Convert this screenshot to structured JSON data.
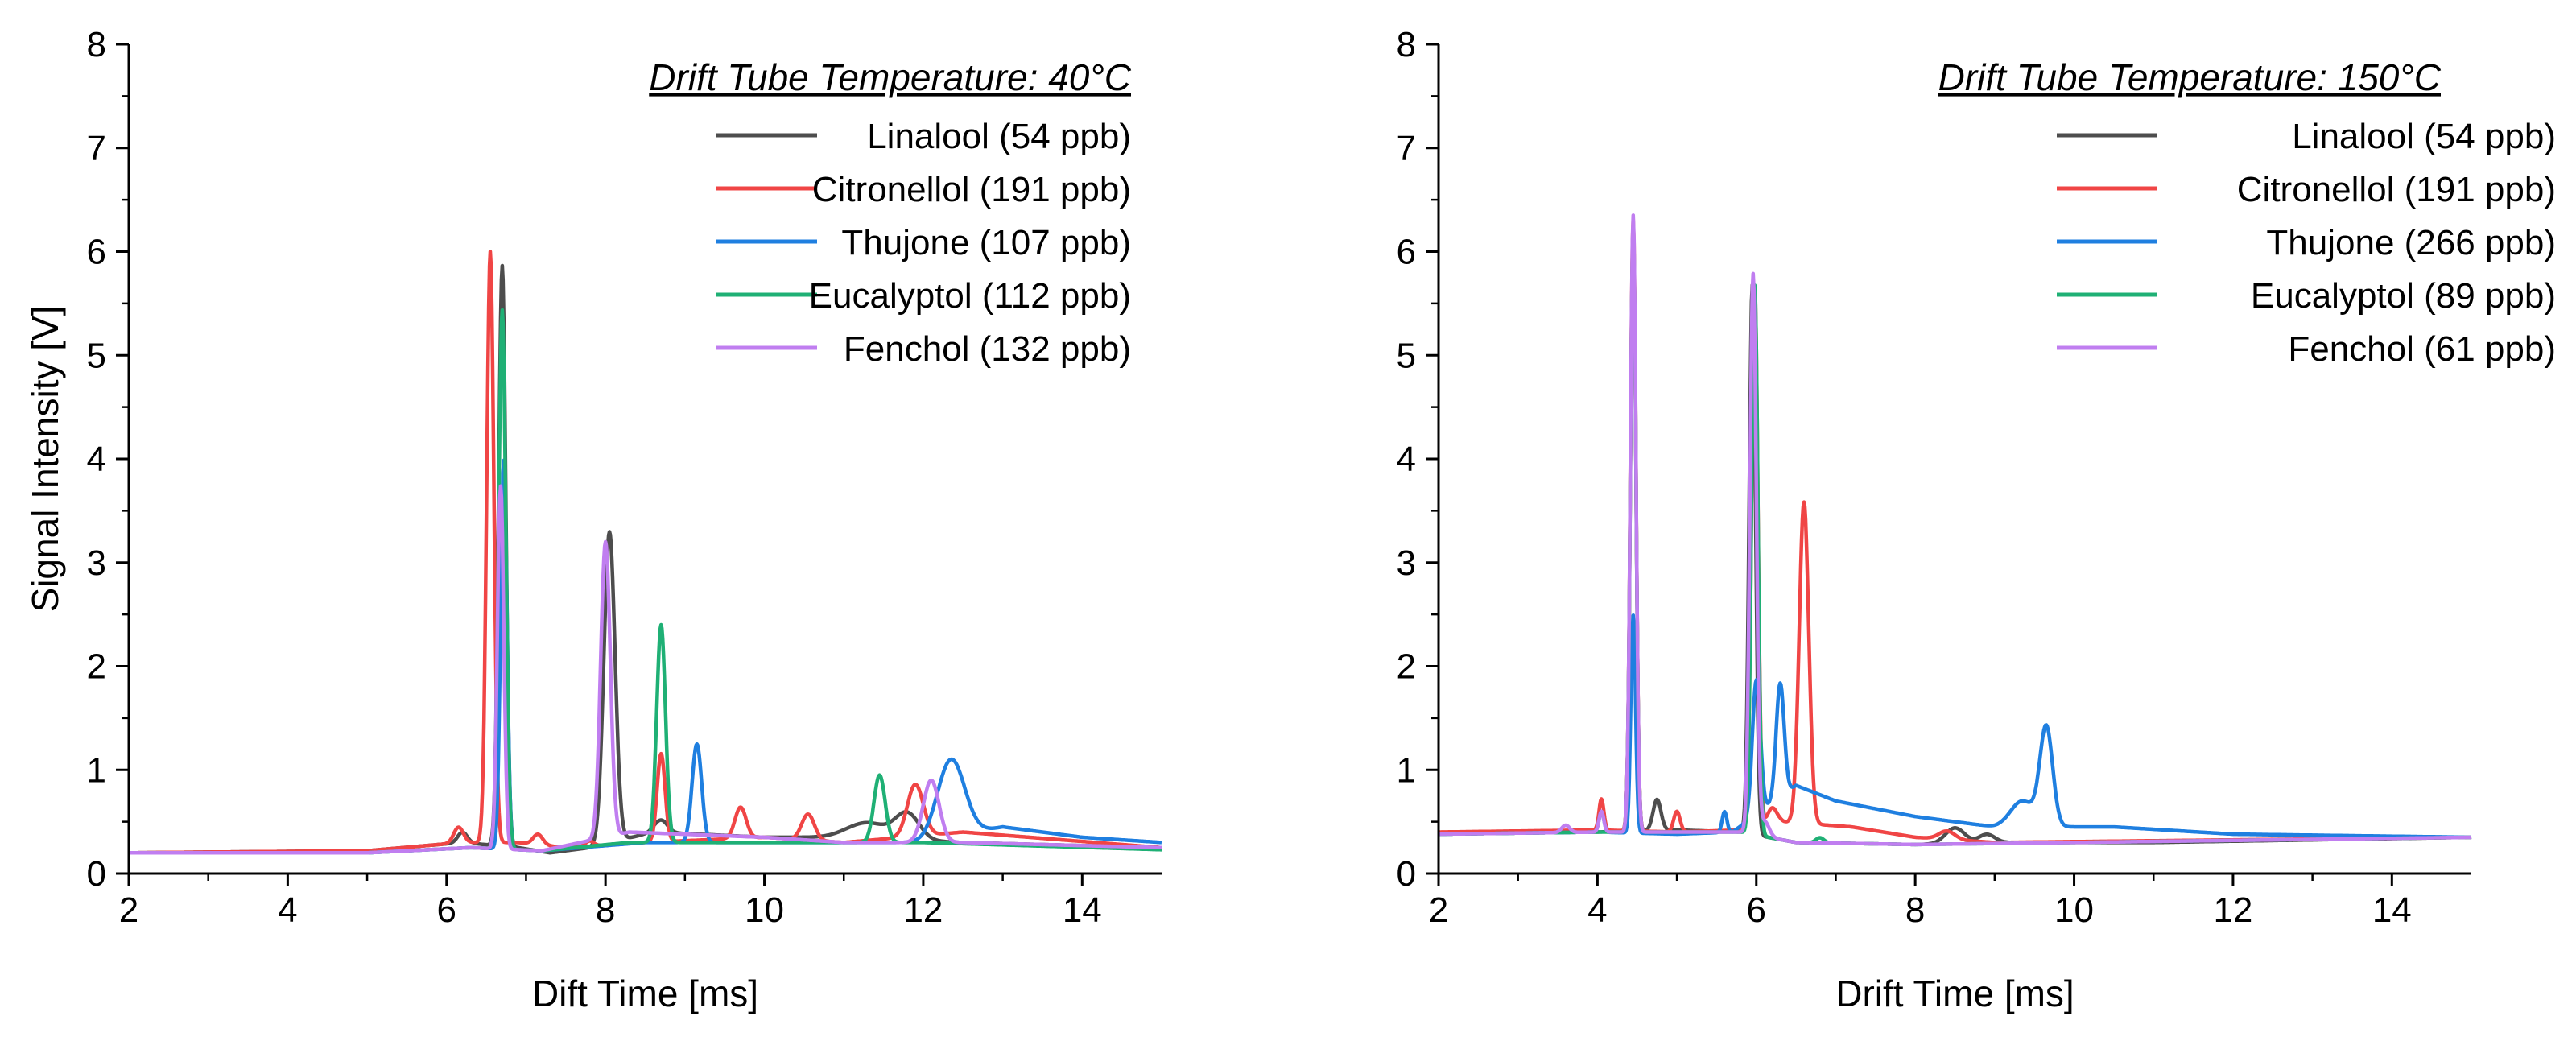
{
  "chart_data": [
    {
      "type": "line",
      "id": "left",
      "legend_title": "Drift Tube Temperature: 40°C",
      "xlabel": "Dift Time [ms]",
      "ylabel": "Signal Intensity [V]",
      "xlim": [
        2,
        15
      ],
      "ylim": [
        0,
        8
      ],
      "xticks": [
        2,
        4,
        6,
        8,
        10,
        12,
        14
      ],
      "yticks": [
        0,
        1,
        2,
        3,
        4,
        5,
        6,
        7,
        8
      ],
      "legend_position": "top-right",
      "series": [
        {
          "name": "Linalool (54 ppb)",
          "color": "#4d4d4d",
          "baseline": [
            [
              2,
              0.2
            ],
            [
              5,
              0.22
            ],
            [
              6.2,
              0.3
            ],
            [
              6.9,
              0.25
            ],
            [
              7.3,
              0.2
            ],
            [
              7.8,
              0.25
            ],
            [
              8.6,
              0.4
            ],
            [
              10,
              0.35
            ],
            [
              11,
              0.35
            ],
            [
              12.5,
              0.3
            ],
            [
              15,
              0.25
            ]
          ],
          "peaks": [
            [
              6.2,
              0.1,
              0.06
            ],
            [
              6.7,
              5.6,
              0.045
            ],
            [
              8.05,
              3.0,
              0.07
            ],
            [
              8.7,
              0.12,
              0.08
            ],
            [
              11.3,
              0.15,
              0.25
            ],
            [
              11.8,
              0.25,
              0.15
            ]
          ]
        },
        {
          "name": "Citronellol (191 ppb)",
          "color": "#f04545",
          "baseline": [
            [
              2,
              0.2
            ],
            [
              5,
              0.22
            ],
            [
              6.2,
              0.3
            ],
            [
              6.9,
              0.3
            ],
            [
              7.5,
              0.25
            ],
            [
              8.5,
              0.3
            ],
            [
              10,
              0.35
            ],
            [
              11,
              0.3
            ],
            [
              12.5,
              0.4
            ],
            [
              15,
              0.25
            ]
          ],
          "peaks": [
            [
              6.15,
              0.15,
              0.06
            ],
            [
              6.55,
              5.7,
              0.045
            ],
            [
              7.15,
              0.1,
              0.06
            ],
            [
              7.8,
              0.05,
              0.05
            ],
            [
              8.7,
              0.85,
              0.05
            ],
            [
              9.7,
              0.3,
              0.07
            ],
            [
              10.55,
              0.25,
              0.08
            ],
            [
              11.9,
              0.5,
              0.1
            ]
          ]
        },
        {
          "name": "Thujone (107 ppb)",
          "color": "#1f7fe0",
          "baseline": [
            [
              2,
              0.2
            ],
            [
              5,
              0.2
            ],
            [
              6.3,
              0.25
            ],
            [
              7.2,
              0.22
            ],
            [
              8.5,
              0.3
            ],
            [
              10,
              0.3
            ],
            [
              11,
              0.3
            ],
            [
              12,
              0.3
            ],
            [
              13,
              0.45
            ],
            [
              14,
              0.35
            ],
            [
              15,
              0.3
            ]
          ],
          "peaks": [
            [
              6.72,
              3.75,
              0.04
            ],
            [
              9.15,
              0.95,
              0.06
            ],
            [
              12.35,
              0.75,
              0.17
            ]
          ]
        },
        {
          "name": "Eucalyptol (112 ppb)",
          "color": "#1fb075",
          "baseline": [
            [
              2,
              0.2
            ],
            [
              5,
              0.2
            ],
            [
              6.3,
              0.25
            ],
            [
              7.2,
              0.22
            ],
            [
              8.3,
              0.3
            ],
            [
              10,
              0.3
            ],
            [
              11,
              0.3
            ],
            [
              12,
              0.3
            ],
            [
              15,
              0.23
            ]
          ],
          "peaks": [
            [
              6.7,
              5.2,
              0.045
            ],
            [
              8.7,
              2.1,
              0.055
            ],
            [
              11.45,
              0.65,
              0.07
            ]
          ]
        },
        {
          "name": "Fenchol (132 ppb)",
          "color": "#c07ef0",
          "baseline": [
            [
              2,
              0.2
            ],
            [
              5,
              0.2
            ],
            [
              6.3,
              0.25
            ],
            [
              7.2,
              0.22
            ],
            [
              8.3,
              0.4
            ],
            [
              10,
              0.35
            ],
            [
              11,
              0.3
            ],
            [
              12.5,
              0.3
            ],
            [
              15,
              0.25
            ]
          ],
          "peaks": [
            [
              6.68,
              3.5,
              0.04
            ],
            [
              8.0,
              2.85,
              0.06
            ],
            [
              12.1,
              0.6,
              0.1
            ]
          ]
        }
      ]
    },
    {
      "type": "line",
      "id": "right",
      "legend_title": "Drift Tube Temperature: 150°C",
      "xlabel": "Drift Time [ms]",
      "ylabel": "",
      "xlim": [
        2,
        15
      ],
      "ylim": [
        0,
        8
      ],
      "xticks": [
        2,
        4,
        6,
        8,
        10,
        12,
        14
      ],
      "yticks": [
        0,
        1,
        2,
        3,
        4,
        5,
        6,
        7,
        8
      ],
      "legend_position": "top-right",
      "series": [
        {
          "name": "Linalool (54 ppb)",
          "color": "#4d4d4d",
          "baseline": [
            [
              2,
              0.38
            ],
            [
              4,
              0.4
            ],
            [
              5,
              0.42
            ],
            [
              5.8,
              0.4
            ],
            [
              6.5,
              0.3
            ],
            [
              8,
              0.28
            ],
            [
              9,
              0.3
            ],
            [
              11,
              0.3
            ],
            [
              15,
              0.35
            ]
          ],
          "peaks": [
            [
              4.45,
              5.8,
              0.035
            ],
            [
              4.75,
              0.3,
              0.05
            ],
            [
              5.95,
              5.3,
              0.04
            ],
            [
              8.5,
              0.15,
              0.12
            ],
            [
              8.9,
              0.08,
              0.1
            ]
          ]
        },
        {
          "name": "Citronellol (191 ppb)",
          "color": "#f04545",
          "baseline": [
            [
              2,
              0.4
            ],
            [
              4,
              0.42
            ],
            [
              5,
              0.4
            ],
            [
              5.8,
              0.42
            ],
            [
              6.3,
              0.5
            ],
            [
              7.2,
              0.45
            ],
            [
              8,
              0.35
            ],
            [
              9,
              0.3
            ],
            [
              15,
              0.35
            ]
          ],
          "peaks": [
            [
              4.05,
              0.3,
              0.03
            ],
            [
              4.45,
              5.9,
              0.035
            ],
            [
              5.0,
              0.2,
              0.04
            ],
            [
              5.98,
              5.2,
              0.04
            ],
            [
              6.2,
              0.15,
              0.06
            ],
            [
              6.6,
              3.1,
              0.06
            ],
            [
              8.4,
              0.08,
              0.1
            ]
          ]
        },
        {
          "name": "Thujone (266 ppb)",
          "color": "#1f7fe0",
          "baseline": [
            [
              2,
              0.38
            ],
            [
              4,
              0.4
            ],
            [
              5,
              0.38
            ],
            [
              5.7,
              0.4
            ],
            [
              6.5,
              0.85
            ],
            [
              7,
              0.7
            ],
            [
              8,
              0.55
            ],
            [
              9,
              0.45
            ],
            [
              10.5,
              0.45
            ],
            [
              12,
              0.38
            ],
            [
              15,
              0.35
            ]
          ],
          "peaks": [
            [
              4.05,
              0.2,
              0.03
            ],
            [
              4.45,
              2.1,
              0.03
            ],
            [
              5.6,
              0.2,
              0.03
            ],
            [
              6.0,
              1.3,
              0.05
            ],
            [
              6.3,
              1.1,
              0.05
            ],
            [
              9.35,
              0.25,
              0.15
            ],
            [
              9.65,
              0.95,
              0.08
            ]
          ]
        },
        {
          "name": "Eucalyptol (89 ppb)",
          "color": "#1fb075",
          "baseline": [
            [
              2,
              0.38
            ],
            [
              4,
              0.4
            ],
            [
              5,
              0.4
            ],
            [
              5.8,
              0.4
            ],
            [
              6.5,
              0.3
            ],
            [
              8,
              0.28
            ],
            [
              15,
              0.35
            ]
          ],
          "peaks": [
            [
              4.45,
              5.8,
              0.035
            ],
            [
              5.98,
              5.3,
              0.04
            ],
            [
              6.8,
              0.05,
              0.05
            ]
          ]
        },
        {
          "name": "Fenchol (61 ppb)",
          "color": "#c07ef0",
          "baseline": [
            [
              2,
              0.38
            ],
            [
              4,
              0.4
            ],
            [
              5,
              0.4
            ],
            [
              5.8,
              0.4
            ],
            [
              6.5,
              0.3
            ],
            [
              8,
              0.28
            ],
            [
              15,
              0.35
            ]
          ],
          "peaks": [
            [
              3.6,
              0.07,
              0.05
            ],
            [
              4.05,
              0.2,
              0.03
            ],
            [
              4.45,
              5.95,
              0.035
            ],
            [
              5.96,
              5.4,
              0.04
            ],
            [
              6.1,
              0.15,
              0.06
            ]
          ]
        }
      ]
    }
  ]
}
